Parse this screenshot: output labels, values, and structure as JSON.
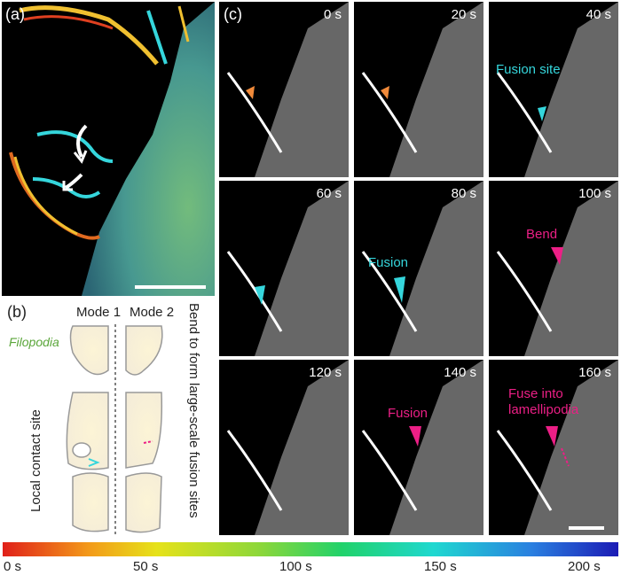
{
  "panel_a": {
    "label": "(a)"
  },
  "panel_b": {
    "label": "(b)",
    "mode1": "Mode 1",
    "mode2": "Mode 2",
    "filopodia": "Filopodia",
    "local_contact": "Local contact site",
    "bend_text": "Bend to form large-scale fusion sites"
  },
  "panel_c": {
    "label": "(c)",
    "frames": [
      {
        "time": "0 s",
        "annotation": ""
      },
      {
        "time": "20 s",
        "annotation": ""
      },
      {
        "time": "40 s",
        "annotation": "Fusion site"
      },
      {
        "time": "60 s",
        "annotation": ""
      },
      {
        "time": "80 s",
        "annotation": "Fusion"
      },
      {
        "time": "100 s",
        "annotation": "Bend"
      },
      {
        "time": "120 s",
        "annotation": ""
      },
      {
        "time": "140 s",
        "annotation": "Fusion"
      },
      {
        "time": "160 s",
        "annotation": "Fuse into lamellipodia"
      }
    ]
  },
  "colorbar": {
    "ticks": [
      "0 s",
      "50 s",
      "100 s",
      "150 s",
      "200 s"
    ]
  },
  "colors": {
    "cyan": "#35d6dc",
    "pink": "#ec1f86",
    "orange": "#f08a3a"
  }
}
